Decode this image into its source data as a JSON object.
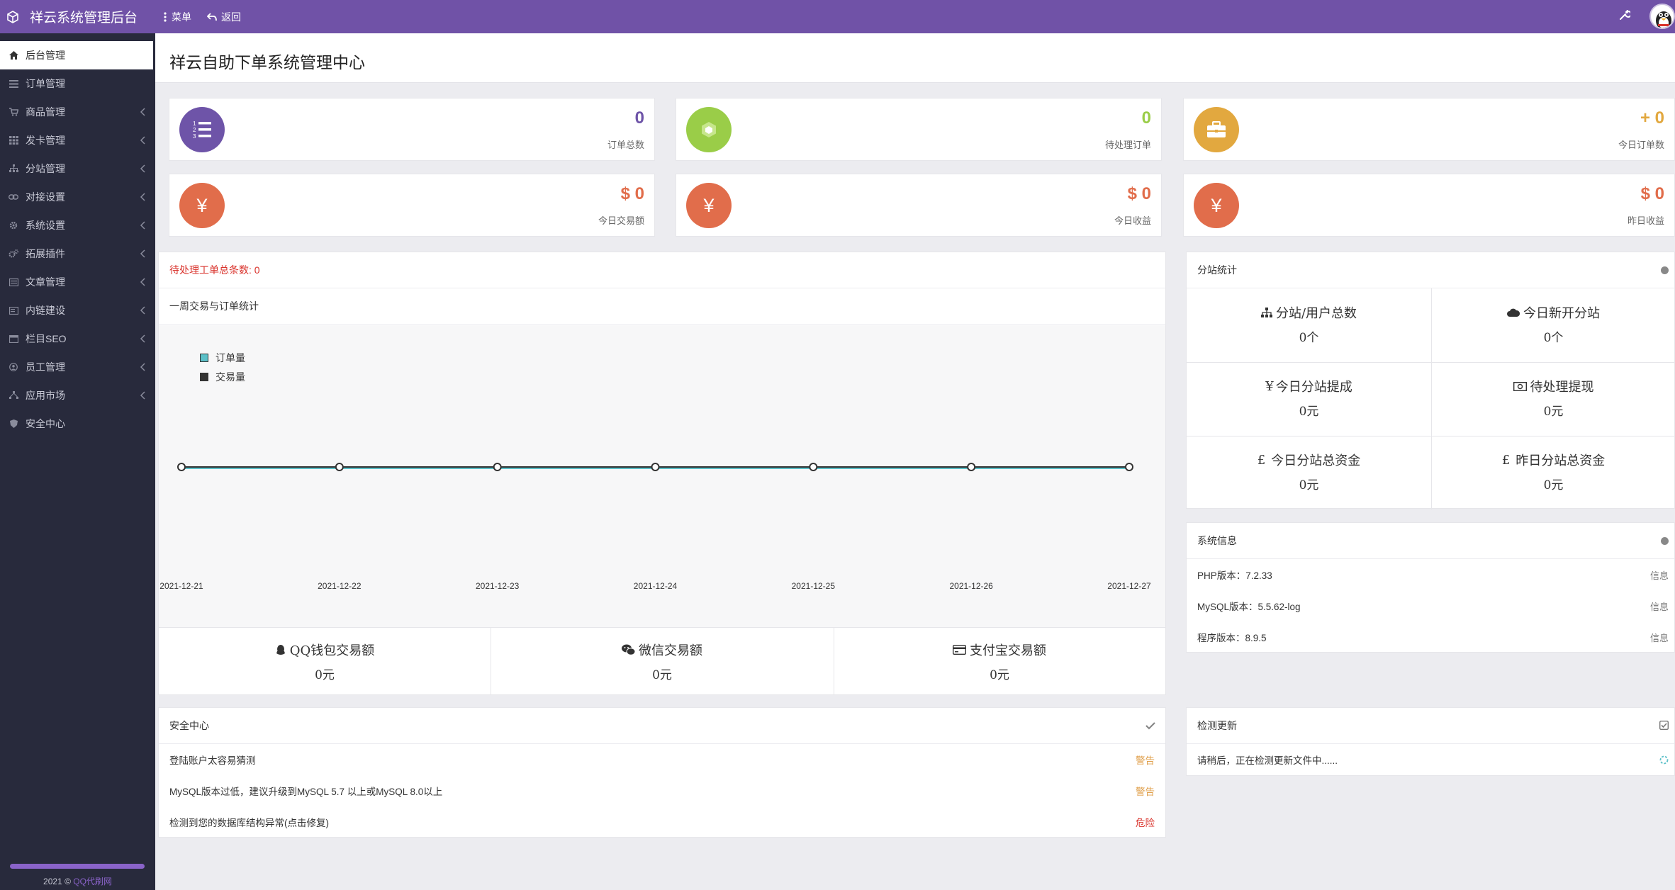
{
  "topbar": {
    "title": "祥云系统管理后台",
    "menu_label": "菜单",
    "back_label": "返回"
  },
  "sidebar": {
    "items": [
      {
        "label": "后台管理",
        "icon": "home-icon"
      },
      {
        "label": "订单管理",
        "icon": "list-icon"
      },
      {
        "label": "商品管理",
        "icon": "cart-icon"
      },
      {
        "label": "发卡管理",
        "icon": "grid-icon"
      },
      {
        "label": "分站管理",
        "icon": "sitemap-icon"
      },
      {
        "label": "对接设置",
        "icon": "link-icon"
      },
      {
        "label": "系统设置",
        "icon": "gear-icon"
      },
      {
        "label": "拓展插件",
        "icon": "cogs-icon"
      },
      {
        "label": "文章管理",
        "icon": "article-icon"
      },
      {
        "label": "内链建设",
        "icon": "doc-icon"
      },
      {
        "label": "栏目SEO",
        "icon": "seo-icon"
      },
      {
        "label": "员工管理",
        "icon": "user-icon"
      },
      {
        "label": "应用市场",
        "icon": "apps-icon"
      },
      {
        "label": "安全中心",
        "icon": "shield-icon"
      }
    ],
    "copyright_prefix": "2021 ©",
    "copyright_link": "QQ代刷网"
  },
  "page": {
    "title": "祥云自助下单系统管理中心"
  },
  "stats": [
    {
      "value": "0",
      "label": "订单总数",
      "color": "#6e54a8",
      "icon": "list-ol-icon"
    },
    {
      "value": "0",
      "label": "待处理订单",
      "color": "#9acd48",
      "icon": "cube-icon"
    },
    {
      "value": "+ 0",
      "label": "今日订单数",
      "color": "#e2a83f",
      "icon": "briefcase-icon"
    },
    {
      "value": "$ 0",
      "label": "今日交易额",
      "color": "#e16d4b",
      "icon": "yen-icon"
    },
    {
      "value": "$ 0",
      "label": "今日收益",
      "color": "#e16d4b",
      "icon": "yen-icon"
    },
    {
      "value": "$ 0",
      "label": "昨日收益",
      "color": "#e16d4b",
      "icon": "yen-icon"
    }
  ],
  "notice": {
    "text": "待处理工单总条数: 0",
    "color": "#d9322b"
  },
  "weekly": {
    "title": "一周交易与订单统计"
  },
  "chart_data": {
    "type": "line",
    "x": [
      "2021-12-21",
      "2021-12-22",
      "2021-12-23",
      "2021-12-24",
      "2021-12-25",
      "2021-12-26",
      "2021-12-27"
    ],
    "series": [
      {
        "name": "订单量",
        "values": [
          0,
          0,
          0,
          0,
          0,
          0,
          0
        ],
        "color": "#5bc0c8"
      },
      {
        "name": "交易量",
        "values": [
          0,
          0,
          0,
          0,
          0,
          0,
          0
        ],
        "color": "#333333"
      }
    ],
    "legend": "top-left",
    "grid": false
  },
  "payments": [
    {
      "label": "QQ钱包交易额",
      "value": "0元",
      "icon": "qq-icon"
    },
    {
      "label": "微信交易额",
      "value": "0元",
      "icon": "wechat-icon"
    },
    {
      "label": "支付宝交易额",
      "value": "0元",
      "icon": "credit-card-icon"
    }
  ],
  "substats": {
    "title": "分站统计",
    "cells": [
      {
        "label": "分站/用户总数",
        "value": "0个",
        "icon": "sitemap-icon"
      },
      {
        "label": "今日新开分站",
        "value": "0个",
        "icon": "cloud-icon"
      },
      {
        "label": "今日分站提成",
        "value": "0元",
        "icon": "yen-icon"
      },
      {
        "label": "待处理提现",
        "value": "0元",
        "icon": "money-icon"
      },
      {
        "label": "今日分站总资金",
        "value": "0元",
        "icon": "pound-icon"
      },
      {
        "label": "昨日分站总资金",
        "value": "0元",
        "icon": "pound-icon"
      }
    ]
  },
  "sysinfo": {
    "title": "系统信息",
    "rows": [
      {
        "label": "PHP版本：7.2.33",
        "tag": "信息"
      },
      {
        "label": "MySQL版本：5.5.62-log",
        "tag": "信息"
      },
      {
        "label": "程序版本：8.9.5",
        "tag": "信息"
      }
    ]
  },
  "security": {
    "title": "安全中心",
    "rows": [
      {
        "label": "登陆账户太容易猜测",
        "tag": "警告",
        "color": "#e0a04c"
      },
      {
        "label": "MySQL版本过低，建议升级到MySQL 5.7 以上或MySQL 8.0以上",
        "tag": "警告",
        "color": "#e0a04c"
      },
      {
        "label": "检测到您的数据库结构异常(点击修复)",
        "tag": "危险",
        "color": "#d9322b"
      }
    ]
  },
  "update": {
    "title": "检测更新",
    "message": "请稍后，正在检测更新文件中......"
  }
}
